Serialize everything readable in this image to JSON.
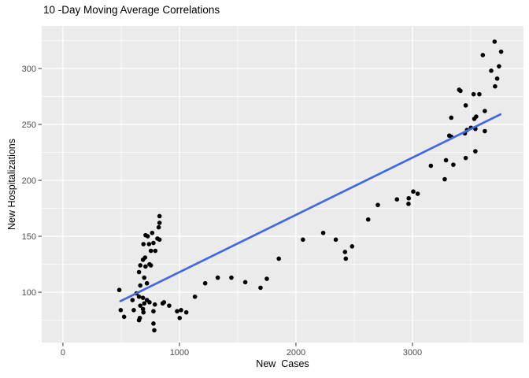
{
  "chart_data": {
    "type": "scatter",
    "title": "10 -Day Moving Average Correlations",
    "xlabel": "New  Cases",
    "ylabel": "New Hospitalizations",
    "x_major_ticks": [
      0,
      1000,
      2000,
      3000
    ],
    "x_minor_ticks": [
      500,
      1500,
      2500,
      3500
    ],
    "y_major_ticks": [
      100,
      150,
      200,
      250,
      300
    ],
    "y_minor_ticks": [
      75,
      125,
      175,
      225,
      275,
      325
    ],
    "xlim": [
      -182,
      3953
    ],
    "ylim": [
      55,
      338
    ],
    "grid": "major+minor",
    "legend": "none",
    "trend_line": {
      "x1": 493,
      "y1": 92,
      "x2": 3755,
      "y2": 259
    },
    "colors": {
      "panel_bg": "#EBEBEB",
      "grid": "#FFFFFF",
      "point": "#000000",
      "trend": "#4169E1",
      "tick_text": "#4D4D4D",
      "tick_mark": "#333333",
      "title_text": "#000000"
    },
    "points": [
      [
        829,
        168
      ],
      [
        829,
        162
      ],
      [
        822,
        158
      ],
      [
        766,
        153
      ],
      [
        709,
        151
      ],
      [
        728,
        150
      ],
      [
        811,
        148
      ],
      [
        829,
        147
      ],
      [
        777,
        144
      ],
      [
        739,
        143
      ],
      [
        691,
        143
      ],
      [
        793,
        137
      ],
      [
        755,
        137
      ],
      [
        705,
        131
      ],
      [
        664,
        124
      ],
      [
        687,
        129
      ],
      [
        709,
        123
      ],
      [
        743,
        125
      ],
      [
        755,
        124
      ],
      [
        653,
        118
      ],
      [
        698,
        113
      ],
      [
        721,
        108
      ],
      [
        664,
        106
      ],
      [
        484,
        102
      ],
      [
        631,
        99
      ],
      [
        653,
        96
      ],
      [
        687,
        95
      ],
      [
        597,
        93
      ],
      [
        721,
        93
      ],
      [
        743,
        91
      ],
      [
        867,
        91
      ],
      [
        856,
        90
      ],
      [
        496,
        84
      ],
      [
        525,
        78
      ],
      [
        608,
        84
      ],
      [
        664,
        88
      ],
      [
        698,
        90
      ],
      [
        687,
        85
      ],
      [
        691,
        82
      ],
      [
        660,
        77
      ],
      [
        777,
        83
      ],
      [
        789,
        89
      ],
      [
        912,
        88
      ],
      [
        980,
        83
      ],
      [
        1014,
        84
      ],
      [
        1002,
        77
      ],
      [
        777,
        72
      ],
      [
        784,
        66
      ],
      [
        653,
        75
      ],
      [
        1059,
        82
      ],
      [
        1133,
        96
      ],
      [
        1221,
        108
      ],
      [
        1329,
        113
      ],
      [
        1446,
        113
      ],
      [
        1565,
        109
      ],
      [
        1696,
        104
      ],
      [
        1750,
        112
      ],
      [
        1853,
        130
      ],
      [
        2060,
        147
      ],
      [
        2234,
        153
      ],
      [
        2342,
        147
      ],
      [
        2421,
        136
      ],
      [
        2428,
        130
      ],
      [
        2482,
        141
      ],
      [
        2620,
        165
      ],
      [
        2703,
        178
      ],
      [
        2867,
        183
      ],
      [
        2966,
        179
      ],
      [
        2968,
        184
      ],
      [
        3007,
        190
      ],
      [
        3045,
        188
      ],
      [
        3158,
        213
      ],
      [
        3277,
        201
      ],
      [
        3288,
        218
      ],
      [
        3316,
        240
      ],
      [
        3333,
        239
      ],
      [
        3333,
        256
      ],
      [
        3351,
        214
      ],
      [
        3401,
        281
      ],
      [
        3412,
        280
      ],
      [
        3450,
        242
      ],
      [
        3457,
        267
      ],
      [
        3457,
        220
      ],
      [
        3468,
        245
      ],
      [
        3502,
        247
      ],
      [
        3525,
        277
      ],
      [
        3531,
        255
      ],
      [
        3540,
        246
      ],
      [
        3540,
        226
      ],
      [
        3547,
        257
      ],
      [
        3574,
        277
      ],
      [
        3604,
        312
      ],
      [
        3621,
        262
      ],
      [
        3621,
        244
      ],
      [
        3676,
        298
      ],
      [
        3705,
        324
      ],
      [
        3709,
        284
      ],
      [
        3727,
        291
      ],
      [
        3743,
        302
      ],
      [
        3761,
        315
      ]
    ]
  }
}
